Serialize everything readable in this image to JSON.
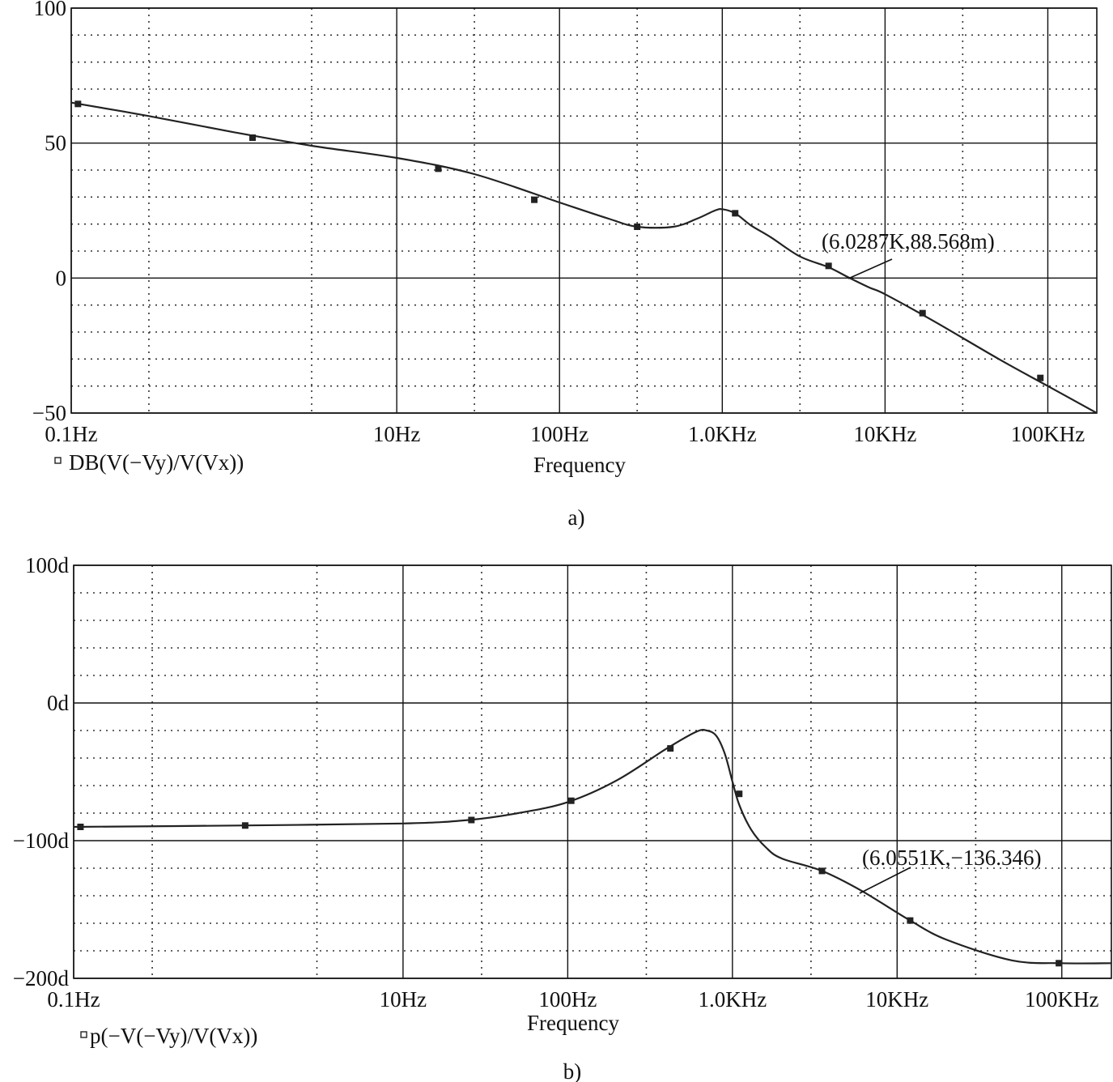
{
  "chart_data": [
    {
      "type": "line",
      "caption": "a)",
      "xlabel": "Frequency",
      "x_scale": "log",
      "xlim": [
        0.1,
        200000
      ],
      "ylim": [
        -50,
        100
      ],
      "x_ticks": [
        {
          "value": 0.1,
          "label": "0.1Hz"
        },
        {
          "value": 10,
          "label": "10Hz"
        },
        {
          "value": 100,
          "label": "100Hz"
        },
        {
          "value": 1000,
          "label": "1.0KHz"
        },
        {
          "value": 10000,
          "label": "10KHz"
        },
        {
          "value": 100000,
          "label": "100KHz"
        }
      ],
      "y_ticks": [
        {
          "value": 100,
          "label": "100"
        },
        {
          "value": 50,
          "label": "50"
        },
        {
          "value": 0,
          "label": "0"
        },
        {
          "value": -50,
          "label": "−50"
        }
      ],
      "grid": true,
      "series": [
        {
          "name": "DB(V(−Vy)/V(Vx))",
          "x": [
            0.1,
            0.3,
            1,
            3,
            10,
            30,
            100,
            200,
            300,
            500,
            700,
            900,
            1000,
            1200,
            1500,
            2000,
            3000,
            4500,
            6029,
            8000,
            10000,
            20000,
            50000,
            100000,
            200000
          ],
          "y": [
            65,
            60,
            54,
            49,
            44.5,
            38.5,
            28,
            22,
            19,
            19,
            22,
            25,
            25.5,
            24,
            19.5,
            15,
            8,
            4,
            0.09,
            -3.5,
            -6,
            -16,
            -30,
            -40,
            -50
          ],
          "markers_x": [
            0.11,
            1.3,
            18,
            70,
            300,
            1200,
            4500,
            17000,
            90000
          ],
          "markers_y": [
            64.5,
            52,
            40.5,
            29,
            19,
            24,
            4.5,
            -13,
            -37
          ]
        }
      ],
      "legend": {
        "text": "DB(V(−Vy)/V(Vx))",
        "position": "bottom-left"
      },
      "annotation": {
        "text": "(6.0287K,88.568m)",
        "x": 6028.7,
        "y": 0.088568
      }
    },
    {
      "type": "line",
      "caption": "b)",
      "xlabel": "Frequency",
      "x_scale": "log",
      "xlim": [
        0.1,
        200000
      ],
      "ylim": [
        -200,
        100
      ],
      "x_ticks": [
        {
          "value": 0.1,
          "label": "0.1Hz"
        },
        {
          "value": 10,
          "label": "10Hz"
        },
        {
          "value": 100,
          "label": "100Hz"
        },
        {
          "value": 1000,
          "label": "1.0KHz"
        },
        {
          "value": 10000,
          "label": "10KHz"
        },
        {
          "value": 100000,
          "label": "100KHz"
        }
      ],
      "y_ticks": [
        {
          "value": 100,
          "label": "100d"
        },
        {
          "value": 0,
          "label": "0d"
        },
        {
          "value": -100,
          "label": "−100d"
        },
        {
          "value": -200,
          "label": "−200d"
        }
      ],
      "grid": true,
      "series": [
        {
          "name": "p(−V(−Vy)/V(Vx))",
          "x": [
            0.1,
            1,
            10,
            25,
            50,
            100,
            200,
            400,
            600,
            700,
            800,
            900,
            1000,
            1100,
            1300,
            1600,
            2000,
            3500,
            6055,
            12000,
            20000,
            50000,
            100000,
            200000
          ],
          "y": [
            -90,
            -89,
            -87.5,
            -85,
            -80,
            -72,
            -56,
            -33,
            -21,
            -20,
            -24,
            -37,
            -57,
            -74,
            -92,
            -105,
            -113,
            -122,
            -136.3,
            -158,
            -172,
            -187,
            -189,
            -189
          ],
          "markers_x": [
            0.11,
            1.1,
            26,
            105,
            420,
            1100,
            3500,
            12000,
            96000
          ],
          "markers_y": [
            -90,
            -89,
            -85,
            -71,
            -33,
            -66,
            -122,
            -158,
            -189
          ]
        }
      ],
      "legend": {
        "text": "p(−V(−Vy)/V(Vx))",
        "position": "bottom-left"
      },
      "annotation": {
        "text": "(6.0551K,−136.346)",
        "x": 6055.1,
        "y": -136.346
      }
    }
  ]
}
